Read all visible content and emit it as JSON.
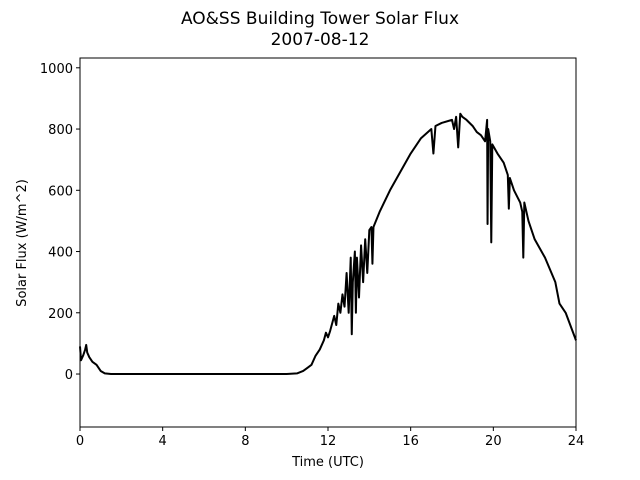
{
  "chart_data": {
    "type": "line",
    "title": "AO&SS Building Tower Solar Flux",
    "subtitle": "2007-08-12",
    "x_label": "Time (UTC)",
    "y_label": "Solar Flux (W/m^2)",
    "color": "#000000",
    "xlim": [
      0,
      24
    ],
    "ylim": [
      -173,
      1032
    ],
    "xticks": [
      0,
      4,
      8,
      12,
      16,
      20,
      24
    ],
    "yticks": [
      0,
      200,
      400,
      600,
      800,
      1000
    ],
    "grid": false,
    "x": [
      0,
      0.05,
      0.15,
      0.25,
      0.3,
      0.35,
      0.45,
      0.6,
      0.8,
      1.0,
      1.2,
      1.5,
      2,
      4,
      6,
      8,
      10,
      10.5,
      10.8,
      11,
      11.2,
      11.4,
      11.6,
      11.8,
      11.9,
      12.0,
      12.1,
      12.3,
      12.4,
      12.5,
      12.6,
      12.7,
      12.8,
      12.9,
      13.0,
      13.1,
      13.15,
      13.2,
      13.3,
      13.35,
      13.4,
      13.5,
      13.6,
      13.7,
      13.8,
      13.9,
      14.0,
      14.1,
      14.15,
      14.2,
      14.5,
      15,
      15.5,
      16,
      16.5,
      17,
      17.1,
      17.2,
      17.5,
      18,
      18.1,
      18.2,
      18.3,
      18.4,
      18.5,
      18.7,
      19,
      19.2,
      19.4,
      19.6,
      19.7,
      19.72,
      19.75,
      19.85,
      19.9,
      19.95,
      20.2,
      20.5,
      20.7,
      20.75,
      20.8,
      21,
      21.3,
      21.4,
      21.45,
      21.5,
      21.7,
      22,
      22.5,
      23,
      23.2,
      23.5,
      24
    ],
    "values": [
      90,
      45,
      60,
      80,
      95,
      70,
      55,
      40,
      30,
      10,
      2,
      0,
      0,
      0,
      0,
      0,
      0,
      2,
      10,
      20,
      30,
      60,
      80,
      110,
      135,
      120,
      140,
      190,
      160,
      230,
      200,
      260,
      220,
      330,
      200,
      380,
      130,
      300,
      400,
      200,
      380,
      250,
      420,
      300,
      440,
      330,
      470,
      480,
      360,
      480,
      530,
      600,
      660,
      720,
      770,
      800,
      720,
      810,
      820,
      830,
      800,
      840,
      740,
      850,
      840,
      830,
      810,
      790,
      780,
      760,
      830,
      490,
      800,
      760,
      430,
      750,
      720,
      690,
      650,
      540,
      640,
      600,
      560,
      530,
      380,
      560,
      500,
      440,
      380,
      300,
      230,
      200,
      110
    ]
  }
}
